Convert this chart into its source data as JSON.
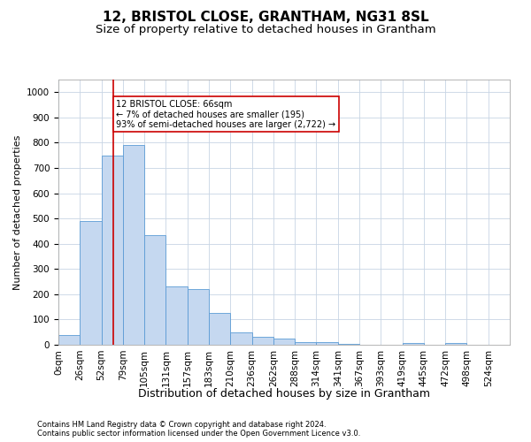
{
  "title": "12, BRISTOL CLOSE, GRANTHAM, NG31 8SL",
  "subtitle": "Size of property relative to detached houses in Grantham",
  "xlabel": "Distribution of detached houses by size in Grantham",
  "ylabel": "Number of detached properties",
  "footer_line1": "Contains HM Land Registry data © Crown copyright and database right 2024.",
  "footer_line2": "Contains public sector information licensed under the Open Government Licence v3.0.",
  "bin_labels": [
    "0sqm",
    "26sqm",
    "52sqm",
    "79sqm",
    "105sqm",
    "131sqm",
    "157sqm",
    "183sqm",
    "210sqm",
    "236sqm",
    "262sqm",
    "288sqm",
    "314sqm",
    "341sqm",
    "367sqm",
    "393sqm",
    "419sqm",
    "445sqm",
    "472sqm",
    "498sqm",
    "524sqm"
  ],
  "bar_values": [
    40,
    490,
    750,
    790,
    435,
    230,
    220,
    125,
    50,
    30,
    25,
    12,
    10,
    5,
    0,
    0,
    8,
    0,
    8,
    0,
    0
  ],
  "bar_color": "#c5d8f0",
  "bar_edge_color": "#5b9bd5",
  "grid_color": "#c8d4e4",
  "vline_x": 2.54,
  "vline_color": "#cc0000",
  "annotation_text": "12 BRISTOL CLOSE: 66sqm\n← 7% of detached houses are smaller (195)\n93% of semi-detached houses are larger (2,722) →",
  "annotation_box_color": "white",
  "annotation_box_edgecolor": "#cc0000",
  "ylim": [
    0,
    1050
  ],
  "yticks": [
    0,
    100,
    200,
    300,
    400,
    500,
    600,
    700,
    800,
    900,
    1000
  ],
  "title_fontsize": 11,
  "subtitle_fontsize": 9.5,
  "ylabel_fontsize": 8,
  "xlabel_fontsize": 9,
  "tick_fontsize": 7.5,
  "annotation_fontsize": 7,
  "footer_fontsize": 6
}
